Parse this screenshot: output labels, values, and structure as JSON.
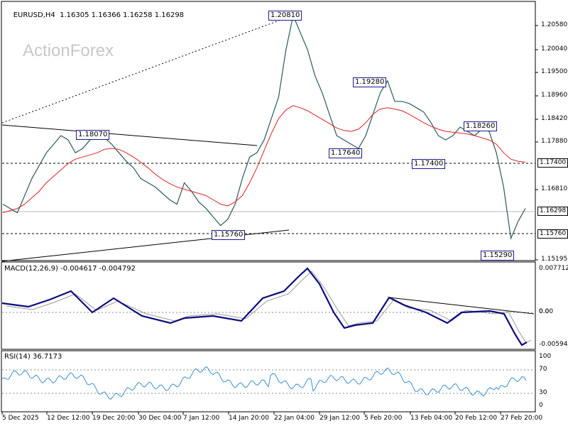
{
  "header": {
    "symbol": "EURUSD,H4",
    "ohlc": "1.16305 1.16366 1.16258 1.16298"
  },
  "watermark": "ActionForex",
  "price_axis": [
    "1.20580",
    "1.20040",
    "1.19500",
    "1.18960",
    "1.18420",
    "1.17880",
    "1.16810",
    "1.15195"
  ],
  "price_boxes": {
    "level_upper": "1.17400",
    "current": "1.16298",
    "level_lower": "1.15760"
  },
  "price_tags": [
    "1.20810",
    "1.19280",
    "1.18070",
    "1.17640",
    "1.17400",
    "1.18260",
    "1.15760",
    "1.15290"
  ],
  "macd": {
    "label": "MACD(12,26,9) -0.004617 -0.004792",
    "axis": [
      "0.007712",
      "0.00",
      "0.0",
      "-0.005944"
    ]
  },
  "rsi": {
    "label": "RSI(14) 36.7173",
    "axis": [
      "100",
      "70",
      "30",
      "0"
    ]
  },
  "time_axis": [
    "5 Dec 2025",
    "12 Dec 12:00",
    "19 Dec 20:00",
    "30 Dec 04:00",
    "7 Jan 12:00",
    "14 Jan 20:00",
    "22 Jan 04:00",
    "29 Jan 12:00",
    "5 Feb 20:00",
    "13 Feb 04:00",
    "20 Feb 12:00",
    "27 Feb 20:00"
  ],
  "chart_data": {
    "type": "line",
    "series": [
      {
        "values": [
          1.164,
          1.163,
          1.162,
          1.166,
          1.17,
          1.173,
          1.176,
          1.178,
          1.18,
          1.179,
          1.176,
          1.177,
          1.179,
          1.18,
          1.1795,
          1.178,
          1.176,
          1.174,
          1.1725,
          1.17,
          1.169,
          1.168,
          1.1665,
          1.165,
          1.164,
          1.169,
          1.167,
          1.1645,
          1.163,
          1.161,
          1.159,
          1.1605,
          1.164,
          1.17,
          1.175,
          1.176,
          1.179,
          1.184,
          1.189,
          1.2,
          1.208,
          1.204,
          1.2,
          1.194,
          1.19,
          1.185,
          1.18,
          1.179,
          1.178,
          1.177,
          1.18,
          1.185,
          1.19,
          1.1928,
          1.188,
          1.188,
          1.1875,
          1.1865,
          1.1855,
          1.183,
          1.18,
          1.179,
          1.18,
          1.182,
          1.181,
          1.18,
          1.1815,
          1.181,
          1.176,
          1.168,
          1.156,
          1.16,
          1.163
        ]
      },
      {
        "values": [
          1.162,
          1.1625,
          1.163,
          1.164,
          1.1655,
          1.167,
          1.169,
          1.1705,
          1.172,
          1.1735,
          1.1745,
          1.175,
          1.1755,
          1.176,
          1.1768,
          1.177,
          1.1768,
          1.176,
          1.175,
          1.1738,
          1.1725,
          1.171,
          1.1698,
          1.1688,
          1.168,
          1.1675,
          1.167,
          1.1665,
          1.166,
          1.165,
          1.164,
          1.1636,
          1.1645,
          1.166,
          1.169,
          1.1725,
          1.1765,
          1.1805,
          1.184,
          1.186,
          1.187,
          1.1865,
          1.1858,
          1.1848,
          1.1838,
          1.1828,
          1.1818,
          1.1812,
          1.181,
          1.1815,
          1.183,
          1.185,
          1.1862,
          1.1865,
          1.1862,
          1.1858,
          1.185,
          1.184,
          1.183,
          1.1822,
          1.1815,
          1.181,
          1.1808,
          1.1806,
          1.1804,
          1.18,
          1.1795,
          1.179,
          1.178,
          1.176,
          1.1745,
          1.174,
          1.1738
        ]
      }
    ]
  },
  "colors": {
    "ma": "#dd2222",
    "macd": "#0b0b80",
    "macd_signal": "#999999",
    "rsi": "#3a8fd0",
    "tag_border": "#1a1a8c",
    "grid": "#000000"
  }
}
